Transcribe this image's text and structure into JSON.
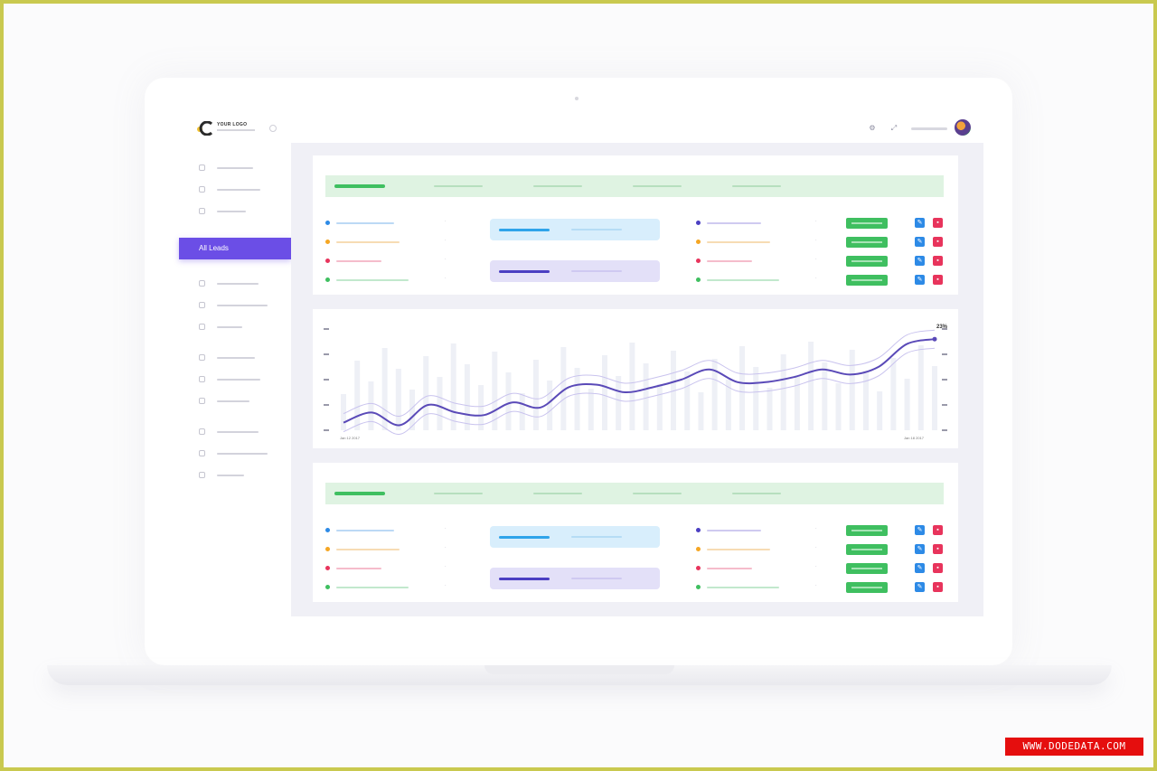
{
  "brand": {
    "logo_text": "YOUR LOGO"
  },
  "sidebar": {
    "active_label": "All Leads"
  },
  "chart_data": {
    "type": "line",
    "series": [
      {
        "values": [
          6,
          14,
          4,
          20,
          14,
          12,
          22,
          18,
          34,
          36,
          30,
          34,
          40,
          48,
          38,
          38,
          42,
          48,
          44,
          50,
          68,
          72
        ]
      }
    ],
    "end_label": "23%",
    "x_start_label": "Jan 12 2017",
    "x_end_label": "Jan 18 2017",
    "ylim": [
      0,
      80
    ]
  },
  "watermark": "WWW.DODEDATA.COM",
  "colors": {
    "accent": "#6b4ee6",
    "success": "#3fbf60",
    "info": "#2d8ae6",
    "danger": "#e8345c",
    "line": "#5a4ab8"
  }
}
